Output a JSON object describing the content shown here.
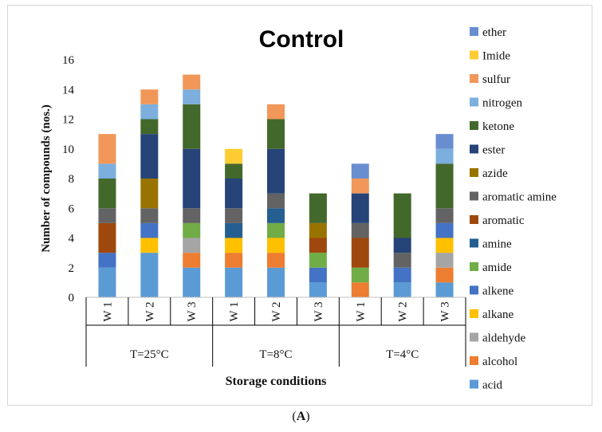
{
  "caption": "(A)",
  "chart_data": {
    "type": "bar",
    "stacked": true,
    "title": "Control",
    "ylabel": "Number of compounds (nos.)",
    "xlabel": "Storage conditions",
    "ylim": [
      0,
      16
    ],
    "yticks": [
      0,
      2,
      4,
      6,
      8,
      10,
      12,
      14,
      16
    ],
    "grid": false,
    "legend_position": "right",
    "groups": [
      {
        "label": "T=25°C",
        "bars": [
          "W 1",
          "W 2",
          "W 3"
        ]
      },
      {
        "label": "T=8°C",
        "bars": [
          "W 1",
          "W 2",
          "W 3"
        ]
      },
      {
        "label": "T=4°C",
        "bars": [
          "W 1",
          "W 2",
          "W 3"
        ]
      }
    ],
    "categories": [
      "W 1",
      "W 2",
      "W 3",
      "W 1",
      "W 2",
      "W 3",
      "W 1",
      "W 2",
      "W 3"
    ],
    "series": [
      {
        "name": "acid",
        "color": "#5B9BD5",
        "values": [
          2,
          3,
          2,
          2,
          2,
          1,
          0,
          1,
          1
        ]
      },
      {
        "name": "alcohol",
        "color": "#ED7D31",
        "values": [
          0,
          0,
          1,
          1,
          1,
          0,
          1,
          0,
          1
        ]
      },
      {
        "name": "aldehyde",
        "color": "#A5A5A5",
        "values": [
          0,
          0,
          1,
          0,
          0,
          0,
          0,
          0,
          1
        ]
      },
      {
        "name": "alkane",
        "color": "#FFC000",
        "values": [
          0,
          1,
          0,
          1,
          1,
          0,
          0,
          0,
          1
        ]
      },
      {
        "name": "alkene",
        "color": "#4472C4",
        "values": [
          1,
          1,
          0,
          0,
          0,
          1,
          0,
          1,
          1
        ]
      },
      {
        "name": "amide",
        "color": "#70AD47",
        "values": [
          0,
          0,
          1,
          0,
          1,
          1,
          1,
          0,
          0
        ]
      },
      {
        "name": "amine",
        "color": "#255E91",
        "values": [
          0,
          0,
          0,
          1,
          1,
          0,
          0,
          0,
          0
        ]
      },
      {
        "name": "aromatic",
        "color": "#9E480E",
        "values": [
          2,
          0,
          0,
          0,
          0,
          1,
          2,
          0,
          0
        ]
      },
      {
        "name": "aromatic amine",
        "color": "#636363",
        "values": [
          1,
          1,
          1,
          1,
          1,
          0,
          1,
          1,
          1
        ]
      },
      {
        "name": "azide",
        "color": "#997300",
        "values": [
          0,
          2,
          0,
          0,
          0,
          1,
          0,
          0,
          0
        ]
      },
      {
        "name": "ester",
        "color": "#264478",
        "values": [
          0,
          3,
          4,
          2,
          3,
          0,
          2,
          1,
          0
        ]
      },
      {
        "name": "ketone",
        "color": "#43682B",
        "values": [
          2,
          1,
          3,
          1,
          2,
          2,
          0,
          3,
          3
        ]
      },
      {
        "name": "nitrogen",
        "color": "#7CAFDD",
        "values": [
          1,
          1,
          1,
          0,
          0,
          0,
          0,
          0,
          1
        ]
      },
      {
        "name": "sulfur",
        "color": "#F1975A",
        "values": [
          2,
          1,
          1,
          0,
          1,
          0,
          1,
          0,
          0
        ]
      },
      {
        "name": "Imide",
        "color": "#FFCD33",
        "values": [
          0,
          0,
          0,
          1,
          0,
          0,
          0,
          0,
          0
        ]
      },
      {
        "name": "ether",
        "color": "#698ED0",
        "values": [
          0,
          0,
          0,
          0,
          0,
          0,
          1,
          0,
          1
        ]
      }
    ]
  }
}
